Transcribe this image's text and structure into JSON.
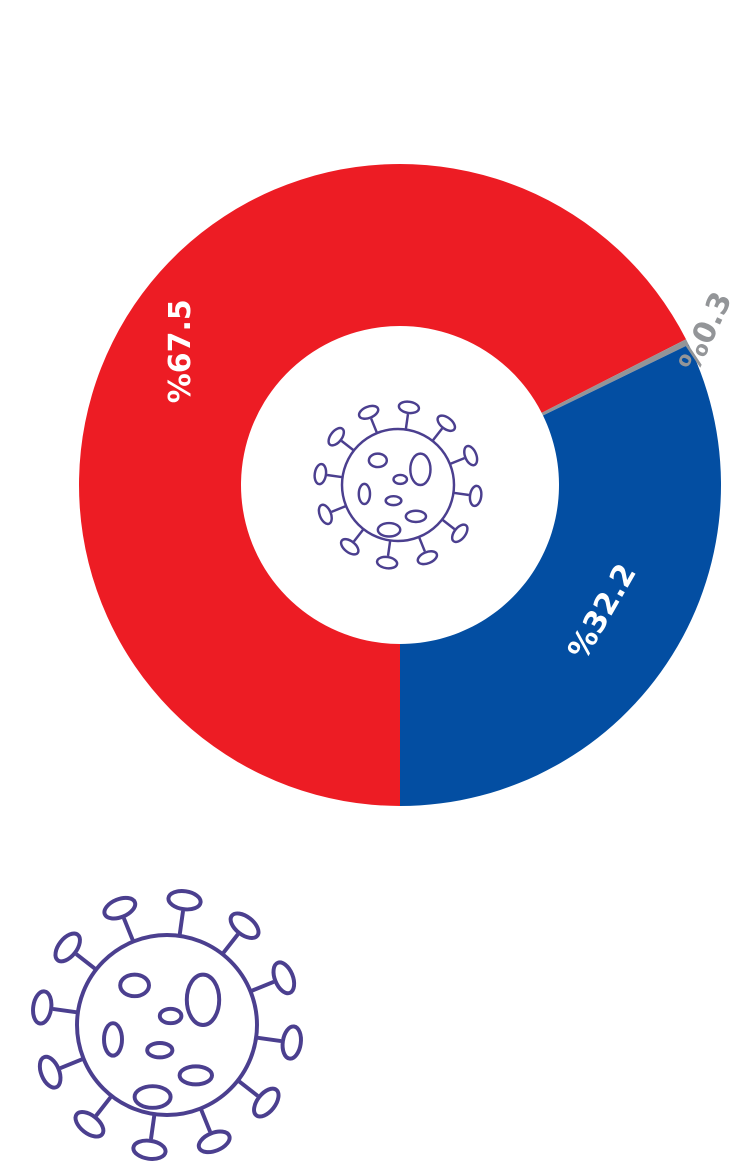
{
  "chart_data": {
    "type": "donut",
    "categories": [
      null,
      null,
      null
    ],
    "values": [
      67.5,
      0.3,
      32.2
    ],
    "value_labels": [
      "%67.5",
      "%0.3",
      "%32.2"
    ],
    "colors": [
      "#ed1c24",
      "#939598",
      "#034ea2"
    ]
  }
}
